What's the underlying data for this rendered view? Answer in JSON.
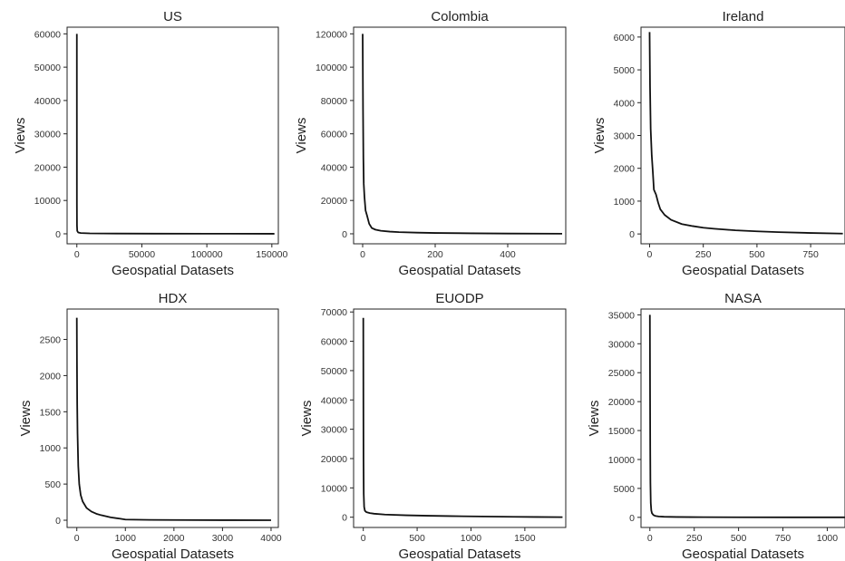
{
  "chart_data": [
    {
      "type": "line",
      "title": "US",
      "xlabel": "Geospatial Datasets",
      "ylabel": "Views",
      "xlim": [
        -7500,
        155000
      ],
      "ylim": [
        -3000,
        62000
      ],
      "xticks": [
        0,
        50000,
        100000,
        150000
      ],
      "yticks": [
        0,
        10000,
        20000,
        30000,
        40000,
        50000,
        60000
      ],
      "x": [
        0,
        30,
        100,
        300,
        1000,
        3000,
        10000,
        30000,
        60000,
        100000,
        152000
      ],
      "y": [
        60000,
        9000,
        2500,
        900,
        400,
        220,
        130,
        80,
        50,
        30,
        10
      ]
    },
    {
      "type": "line",
      "title": "Colombia",
      "xlabel": "Geospatial Datasets",
      "ylabel": "Views",
      "xlim": [
        -25,
        560
      ],
      "ylim": [
        -6000,
        124000
      ],
      "xticks": [
        0,
        200,
        400
      ],
      "yticks": [
        0,
        20000,
        40000,
        60000,
        80000,
        100000,
        120000
      ],
      "x": [
        0,
        1,
        2,
        3,
        5,
        8,
        12,
        18,
        25,
        35,
        50,
        75,
        100,
        150,
        200,
        300,
        400,
        550
      ],
      "y": [
        120000,
        75000,
        45000,
        30000,
        22000,
        14000,
        11000,
        6000,
        3500,
        2500,
        1800,
        1300,
        1000,
        700,
        500,
        300,
        150,
        50
      ]
    },
    {
      "type": "line",
      "title": "Ireland",
      "xlabel": "Geospatial Datasets",
      "ylabel": "Views",
      "xlim": [
        -40,
        910
      ],
      "ylim": [
        -300,
        6300
      ],
      "xticks": [
        0,
        250,
        500,
        750
      ],
      "yticks": [
        0,
        1000,
        2000,
        3000,
        4000,
        5000,
        6000
      ],
      "x": [
        0,
        2,
        5,
        10,
        15,
        20,
        30,
        40,
        50,
        70,
        100,
        150,
        200,
        250,
        300,
        400,
        500,
        600,
        750,
        900
      ],
      "y": [
        6150,
        4500,
        3200,
        2400,
        1900,
        1350,
        1200,
        950,
        750,
        580,
        430,
        300,
        240,
        190,
        160,
        110,
        80,
        55,
        30,
        10
      ]
    },
    {
      "type": "line",
      "title": "HDX",
      "xlabel": "Geospatial Datasets",
      "ylabel": "Views",
      "xlim": [
        -200,
        4150
      ],
      "ylim": [
        -100,
        2920
      ],
      "xticks": [
        0,
        1000,
        2000,
        3000,
        4000
      ],
      "yticks": [
        0,
        500,
        1000,
        1500,
        2000,
        2500
      ],
      "x": [
        0,
        3,
        8,
        15,
        30,
        50,
        80,
        120,
        200,
        300,
        400,
        500,
        700,
        900,
        1000,
        1500,
        2000,
        3000,
        4000
      ],
      "y": [
        2800,
        2200,
        1600,
        1200,
        750,
        500,
        350,
        260,
        170,
        120,
        90,
        70,
        40,
        20,
        10,
        5,
        3,
        1,
        0
      ]
    },
    {
      "type": "line",
      "title": "EUODP",
      "xlabel": "Geospatial Datasets",
      "ylabel": "Views",
      "xlim": [
        -90,
        1880
      ],
      "ylim": [
        -3500,
        71000
      ],
      "xticks": [
        0,
        500,
        1000,
        1500
      ],
      "yticks": [
        0,
        10000,
        20000,
        30000,
        40000,
        50000,
        60000,
        70000
      ],
      "x": [
        0,
        1,
        2,
        4,
        8,
        15,
        30,
        60,
        100,
        200,
        400,
        600,
        800,
        1000,
        1200,
        1400,
        1600,
        1850
      ],
      "y": [
        68000,
        40000,
        20000,
        8000,
        3500,
        2200,
        1700,
        1400,
        1200,
        900,
        650,
        500,
        380,
        280,
        200,
        130,
        70,
        20
      ]
    },
    {
      "type": "line",
      "title": "NASA",
      "xlabel": "Geospatial Datasets",
      "ylabel": "Views",
      "xlim": [
        -50,
        1100
      ],
      "ylim": [
        -1750,
        36000
      ],
      "xticks": [
        0,
        250,
        500,
        750,
        1000
      ],
      "yticks": [
        0,
        5000,
        10000,
        15000,
        20000,
        25000,
        30000,
        35000
      ],
      "x": [
        0,
        1,
        2,
        3,
        5,
        8,
        12,
        20,
        30,
        50,
        80,
        150,
        300,
        500,
        800,
        1100
      ],
      "y": [
        35000,
        22000,
        12000,
        6000,
        2500,
        1200,
        700,
        400,
        250,
        150,
        100,
        60,
        30,
        15,
        5,
        0
      ]
    }
  ]
}
